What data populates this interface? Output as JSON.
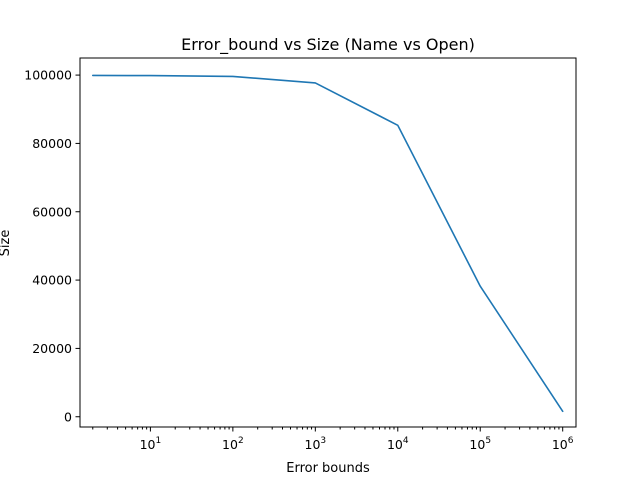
{
  "chart_data": {
    "type": "line",
    "title": "Error_bound vs Size (Name vs Open)",
    "xlabel": "Error bounds",
    "ylabel": "Size",
    "xscale": "log",
    "xlim": [
      1.4,
      1450000
    ],
    "ylim": [
      -3000,
      105000
    ],
    "grid": false,
    "legend": "none",
    "x_ticks": [
      {
        "base": "10",
        "exp": "1",
        "value": 10
      },
      {
        "base": "10",
        "exp": "2",
        "value": 100
      },
      {
        "base": "10",
        "exp": "3",
        "value": 1000
      },
      {
        "base": "10",
        "exp": "4",
        "value": 10000
      },
      {
        "base": "10",
        "exp": "5",
        "value": 100000
      },
      {
        "base": "10",
        "exp": "6",
        "value": 1000000
      }
    ],
    "y_ticks": [
      {
        "label": "0",
        "value": 0
      },
      {
        "label": "20000",
        "value": 20000
      },
      {
        "label": "40000",
        "value": 40000
      },
      {
        "label": "60000",
        "value": 60000
      },
      {
        "label": "80000",
        "value": 80000
      },
      {
        "label": "100000",
        "value": 100000
      }
    ],
    "series": [
      {
        "color": "#1f77b4",
        "x": [
          2,
          10,
          100,
          1000,
          10000,
          100000,
          1000000
        ],
        "y": [
          99900,
          99850,
          99600,
          97700,
          85300,
          38200,
          1600
        ]
      }
    ]
  }
}
